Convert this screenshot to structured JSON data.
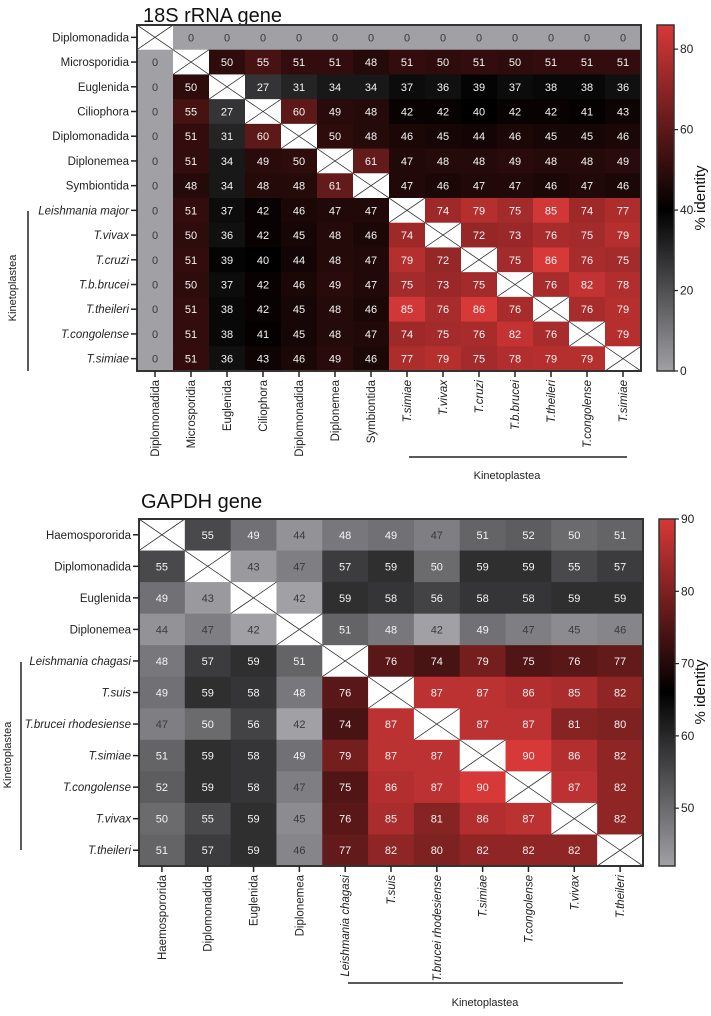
{
  "chart_data": [
    {
      "type": "heatmap",
      "title": "18S rRNA gene",
      "rows": [
        "Diplomonadida",
        "Microsporidia",
        "Euglenida",
        "Ciliophora",
        "Diplomonadida",
        "Diplonemea",
        "Symbiontida",
        "Leishmania major",
        "T.vivax",
        "T.cruzi",
        "T.b.brucei",
        "T.theileri",
        "T.congolense",
        "T.simiae"
      ],
      "columns": [
        "Diplomonadida",
        "Microsporidia",
        "Euglenida",
        "Ciliophora",
        "Diplomonadida",
        "Diplonemea",
        "Symbiontida",
        "T.simiae",
        "T.vivax",
        "T.cruzi",
        "T.b.brucei",
        "T.theileri",
        "T.congolense",
        "T.simiae"
      ],
      "values": [
        [
          null,
          0,
          0,
          0,
          0,
          0,
          0,
          0,
          0,
          0,
          0,
          0,
          0,
          0
        ],
        [
          0,
          null,
          50,
          55,
          51,
          51,
          48,
          51,
          50,
          51,
          50,
          51,
          51,
          51
        ],
        [
          0,
          50,
          null,
          27,
          31,
          34,
          34,
          37,
          36,
          39,
          37,
          38,
          38,
          36
        ],
        [
          0,
          55,
          27,
          null,
          60,
          49,
          48,
          42,
          42,
          40,
          42,
          42,
          41,
          43
        ],
        [
          0,
          51,
          31,
          60,
          null,
          50,
          48,
          46,
          45,
          44,
          46,
          45,
          45,
          46
        ],
        [
          0,
          51,
          34,
          49,
          50,
          null,
          61,
          47,
          48,
          48,
          49,
          48,
          48,
          49
        ],
        [
          0,
          48,
          34,
          48,
          48,
          61,
          null,
          47,
          46,
          47,
          47,
          46,
          47,
          46
        ],
        [
          0,
          51,
          37,
          42,
          46,
          47,
          47,
          null,
          74,
          79,
          75,
          85,
          74,
          77
        ],
        [
          0,
          50,
          36,
          42,
          45,
          48,
          46,
          74,
          null,
          72,
          73,
          76,
          75,
          79
        ],
        [
          0,
          51,
          39,
          40,
          44,
          48,
          47,
          79,
          72,
          null,
          75,
          86,
          76,
          75
        ],
        [
          0,
          50,
          37,
          42,
          46,
          49,
          47,
          75,
          73,
          75,
          null,
          76,
          82,
          78
        ],
        [
          0,
          51,
          38,
          42,
          45,
          48,
          46,
          85,
          76,
          86,
          76,
          null,
          76,
          79
        ],
        [
          0,
          51,
          38,
          41,
          45,
          48,
          47,
          74,
          75,
          76,
          82,
          76,
          null,
          79
        ],
        [
          0,
          51,
          36,
          43,
          46,
          49,
          46,
          77,
          79,
          75,
          78,
          79,
          79,
          null
        ]
      ],
      "group": {
        "label": "Kinetoplastea",
        "start_index": 7
      },
      "colorbar": {
        "label": "% identity",
        "range": [
          0,
          86
        ],
        "ticks": [
          "0",
          "20",
          "40",
          "60",
          "80"
        ],
        "tick_values": [
          0,
          20,
          40,
          60,
          80
        ],
        "mid_value": 40
      },
      "colors": {
        "low": "#a0a0a5",
        "mid": "#000000",
        "high": "#d73838"
      }
    },
    {
      "type": "heatmap",
      "title": "GAPDH gene",
      "rows": [
        "Haemospororida",
        "Diplomonadida",
        "Euglenida",
        "Diplonemea",
        "Leishmania chagasi",
        "T.suis",
        "T.brucei rhodesiense",
        "T.simiae",
        "T.congolense",
        "T.vivax",
        "T.theileri"
      ],
      "columns": [
        "Haemospororida",
        "Diplomonadida",
        "Euglenida",
        "Diplonemea",
        "Leishmania chagasi",
        "T.suis",
        "T.brucei rhodesiense",
        "T.simiae",
        "T.congolense",
        "T.vivax",
        "T.theileri"
      ],
      "values": [
        [
          null,
          55,
          49,
          44,
          48,
          49,
          47,
          51,
          52,
          50,
          51
        ],
        [
          55,
          null,
          43,
          47,
          57,
          59,
          50,
          59,
          59,
          55,
          57
        ],
        [
          49,
          43,
          null,
          42,
          59,
          58,
          56,
          58,
          58,
          59,
          59
        ],
        [
          44,
          47,
          42,
          null,
          51,
          48,
          42,
          49,
          47,
          45,
          46
        ],
        [
          48,
          57,
          59,
          51,
          null,
          76,
          74,
          79,
          75,
          76,
          77
        ],
        [
          49,
          59,
          58,
          48,
          76,
          null,
          87,
          87,
          86,
          85,
          82
        ],
        [
          47,
          50,
          56,
          42,
          74,
          87,
          null,
          87,
          87,
          81,
          80
        ],
        [
          51,
          59,
          58,
          49,
          79,
          87,
          87,
          null,
          90,
          86,
          82
        ],
        [
          52,
          59,
          58,
          47,
          75,
          86,
          87,
          90,
          null,
          87,
          82
        ],
        [
          50,
          55,
          59,
          45,
          76,
          85,
          81,
          86,
          87,
          null,
          82
        ],
        [
          51,
          57,
          59,
          46,
          77,
          82,
          80,
          82,
          82,
          82,
          null
        ]
      ],
      "group": {
        "label": "Kinetoplastea",
        "start_index": 4
      },
      "colorbar": {
        "label": "% identity",
        "range": [
          42,
          90
        ],
        "ticks": [
          "50",
          "60",
          "70",
          "80",
          "90"
        ],
        "tick_values": [
          50,
          60,
          70,
          80,
          90
        ],
        "mid_value": 66
      },
      "colors": {
        "low": "#a0a0a5",
        "mid": "#000000",
        "high": "#d73838"
      }
    }
  ]
}
